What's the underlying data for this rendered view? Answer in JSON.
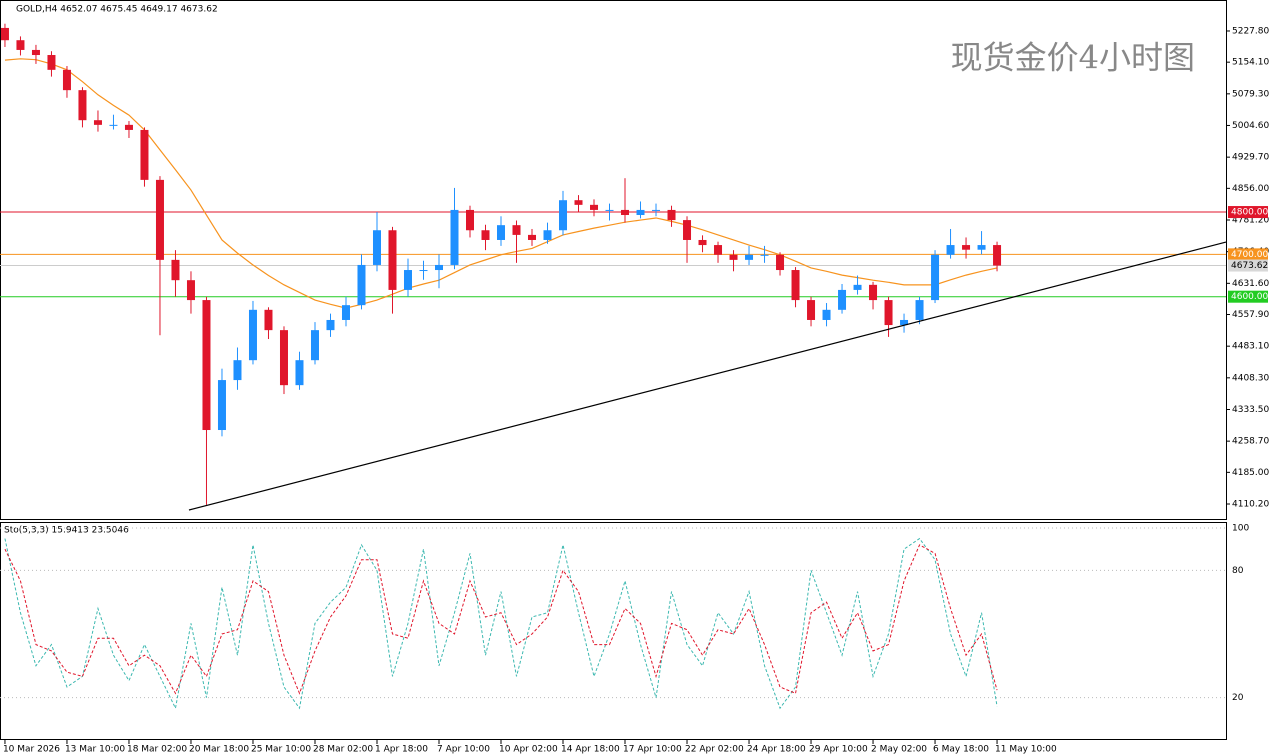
{
  "chart_data": [
    {
      "type": "candlestick",
      "title": "GOLD,H4  4652.07 4675.45 4649.17 4673.62",
      "watermark": "现货金价4小时图",
      "categories": [
        "10 Mar 2026",
        null,
        null,
        null,
        "13 Mar 10:00",
        null,
        null,
        null,
        "18 Mar 02:00",
        null,
        null,
        null,
        "20 Mar 18:00",
        null,
        null,
        null,
        "25 Mar 10:00",
        null,
        null,
        null,
        "28 Mar 02:00",
        null,
        null,
        null,
        "1 Apr 18:00",
        null,
        null,
        null,
        "7 Apr 10:00",
        null,
        null,
        null,
        "10 Apr 02:00",
        null,
        null,
        null,
        "14 Apr 18:00",
        null,
        null,
        null,
        "17 Apr 10:00",
        null,
        null,
        null,
        "22 Apr 02:00",
        null,
        null,
        null,
        "24 Apr 18:00",
        null,
        null,
        null,
        "29 Apr 10:00",
        null,
        null,
        null,
        "2 May 02:00",
        null,
        null,
        null,
        "6 May 18:00",
        null,
        null,
        null,
        "11 May 10:00"
      ],
      "open": [
        5235,
        5206,
        5183,
        5171,
        5136,
        5088,
        5017,
        5006,
        5006,
        4994,
        4876,
        4687,
        4639,
        4592,
        4285,
        4403,
        4450,
        4569,
        4521,
        4391,
        4450,
        4521,
        4545,
        4580,
        4675,
        4757,
        4616,
        4663,
        4663,
        4675,
        4805,
        4757,
        4734,
        4769,
        4746,
        4734,
        4757,
        4828,
        4817,
        4805,
        4805,
        4793,
        4805,
        4805,
        4781,
        4734,
        4722,
        4699,
        4687,
        4699,
        4699,
        4663,
        4592,
        4545,
        4569,
        4616,
        4628,
        4592,
        4533,
        4545,
        4592,
        4699,
        4722,
        4711,
        4722
      ],
      "high": [
        5245,
        5215,
        5195,
        5180,
        5145,
        5095,
        5040,
        5030,
        5015,
        5000,
        4885,
        4710,
        4660,
        4600,
        4430,
        4480,
        4590,
        4575,
        4530,
        4470,
        4540,
        4560,
        4600,
        4700,
        4800,
        4765,
        4690,
        4685,
        4700,
        4857,
        4815,
        4770,
        4790,
        4780,
        4760,
        4775,
        4850,
        4840,
        4830,
        4820,
        4880,
        4825,
        4820,
        4815,
        4790,
        4745,
        4730,
        4710,
        4720,
        4720,
        4705,
        4670,
        4600,
        4585,
        4630,
        4650,
        4635,
        4600,
        4560,
        4600,
        4710,
        4760,
        4740,
        4755,
        4730
      ],
      "low": [
        5190,
        5170,
        5150,
        5120,
        5070,
        5000,
        4990,
        4995,
        4975,
        4860,
        4509,
        4600,
        4560,
        4108,
        4270,
        4380,
        4440,
        4500,
        4370,
        4380,
        4440,
        4505,
        4530,
        4570,
        4660,
        4560,
        4600,
        4640,
        4620,
        4665,
        4740,
        4710,
        4720,
        4680,
        4720,
        4725,
        4745,
        4800,
        4790,
        4780,
        4775,
        4785,
        4790,
        4765,
        4680,
        4705,
        4680,
        4660,
        4675,
        4680,
        4650,
        4575,
        4530,
        4530,
        4560,
        4605,
        4570,
        4505,
        4515,
        4535,
        4585,
        4690,
        4690,
        4700,
        4660
      ],
      "close": [
        5206,
        5183,
        5171,
        5136,
        5088,
        5017,
        5006,
        5006,
        4994,
        4876,
        4687,
        4639,
        4592,
        4285,
        4403,
        4450,
        4569,
        4521,
        4391,
        4450,
        4521,
        4545,
        4580,
        4675,
        4757,
        4616,
        4663,
        4663,
        4675,
        4805,
        4757,
        4734,
        4769,
        4746,
        4734,
        4757,
        4828,
        4817,
        4805,
        4805,
        4793,
        4805,
        4805,
        4781,
        4734,
        4722,
        4699,
        4687,
        4699,
        4699,
        4663,
        4592,
        4545,
        4569,
        4616,
        4628,
        4592,
        4533,
        4545,
        4592,
        4699,
        4722,
        4711,
        4722,
        4673.62
      ],
      "up_color": "#1e90ff",
      "down_color": "#e0162b",
      "ma": {
        "color": "#f7931e",
        "values": [
          5159,
          5162,
          5160,
          5150,
          5136,
          5108,
          5077,
          5052,
          5029,
          4994,
          4947,
          4900,
          4852,
          4793,
          4734,
          4703,
          4675,
          4650,
          4628,
          4610,
          4592,
          4582,
          4573,
          4582,
          4592,
          4606,
          4620,
          4630,
          4639,
          4657,
          4675,
          4687,
          4699,
          4707,
          4714,
          4730,
          4746,
          4754,
          4762,
          4769,
          4776,
          4781,
          4786,
          4778,
          4769,
          4758,
          4746,
          4734,
          4722,
          4711,
          4699,
          4684,
          4668,
          4660,
          4651,
          4645,
          4639,
          4634,
          4628,
          4628,
          4628,
          4640,
          4651,
          4660,
          4668
        ]
      },
      "levels": [
        {
          "value": 4800,
          "label": "4800.00",
          "color": "#e0162b"
        },
        {
          "value": 4700,
          "label": "4700.00",
          "color": "#f7931e"
        },
        {
          "value": 4600,
          "label": "4600.00",
          "color": "#22cc22"
        }
      ],
      "trendline": {
        "x": [
          11.87,
          78.77
        ],
        "values": [
          4096,
          4729
        ],
        "color": "#000000"
      },
      "xlim": [
        -0.32,
        78.77
      ],
      "ylim": [
        4072.4,
        5301
      ],
      "yticks": [
        {
          "value": 5227.8,
          "label": "5227.80"
        },
        {
          "value": 5154.1,
          "label": "5154.10"
        },
        {
          "value": 5079.3,
          "label": "5079.30"
        },
        {
          "value": 5004.6,
          "label": "5004.60"
        },
        {
          "value": 4929.7,
          "label": "4929.70"
        },
        {
          "value": 4856,
          "label": "4856.00"
        },
        {
          "value": 4781.2,
          "label": "4781.20"
        },
        {
          "value": 4706.4,
          "label": "4706.40"
        },
        {
          "value": 4631.6,
          "label": "4631.60"
        },
        {
          "value": 4557.9,
          "label": "4557.90"
        },
        {
          "value": 4483.1,
          "label": "4483.10"
        },
        {
          "value": 4408.3,
          "label": "4408.30"
        },
        {
          "value": 4333.5,
          "label": "4333.50"
        },
        {
          "value": 4258.7,
          "label": "4258.70"
        },
        {
          "value": 4185,
          "label": "4185.00"
        },
        {
          "value": 4110.2,
          "label": "4110.20"
        }
      ]
    },
    {
      "type": "line",
      "title": "Sto(5,3,3) 15.9413 23.5046",
      "series": [
        {
          "color": "#3cb8b0",
          "values": [
            95,
            60,
            35,
            45,
            25,
            30,
            62,
            40,
            28,
            45,
            30,
            15,
            55,
            20,
            72,
            40,
            92,
            55,
            25,
            15,
            55,
            65,
            72,
            92,
            80,
            30,
            55,
            90,
            35,
            60,
            88,
            40,
            70,
            30,
            58,
            60,
            92,
            60,
            30,
            50,
            75,
            45,
            20,
            70,
            45,
            35,
            60,
            50,
            70,
            35,
            15,
            25,
            80,
            60,
            40,
            70,
            30,
            50,
            90,
            95,
            85,
            50,
            30,
            60,
            15.9413
          ]
        },
        {
          "color": "#e0162b",
          "values": [
            90,
            75,
            45,
            42,
            32,
            30,
            48,
            48,
            35,
            40,
            35,
            22,
            40,
            30,
            50,
            52,
            75,
            70,
            40,
            22,
            42,
            58,
            68,
            85,
            85,
            50,
            48,
            75,
            55,
            50,
            75,
            58,
            60,
            45,
            50,
            58,
            80,
            70,
            45,
            45,
            62,
            55,
            30,
            55,
            52,
            40,
            52,
            50,
            62,
            45,
            25,
            22,
            60,
            65,
            48,
            60,
            42,
            45,
            75,
            92,
            88,
            62,
            40,
            50,
            23.5046
          ]
        }
      ],
      "ylim": [
        0,
        102.8
      ],
      "yticks": [
        20,
        80,
        100
      ]
    }
  ]
}
